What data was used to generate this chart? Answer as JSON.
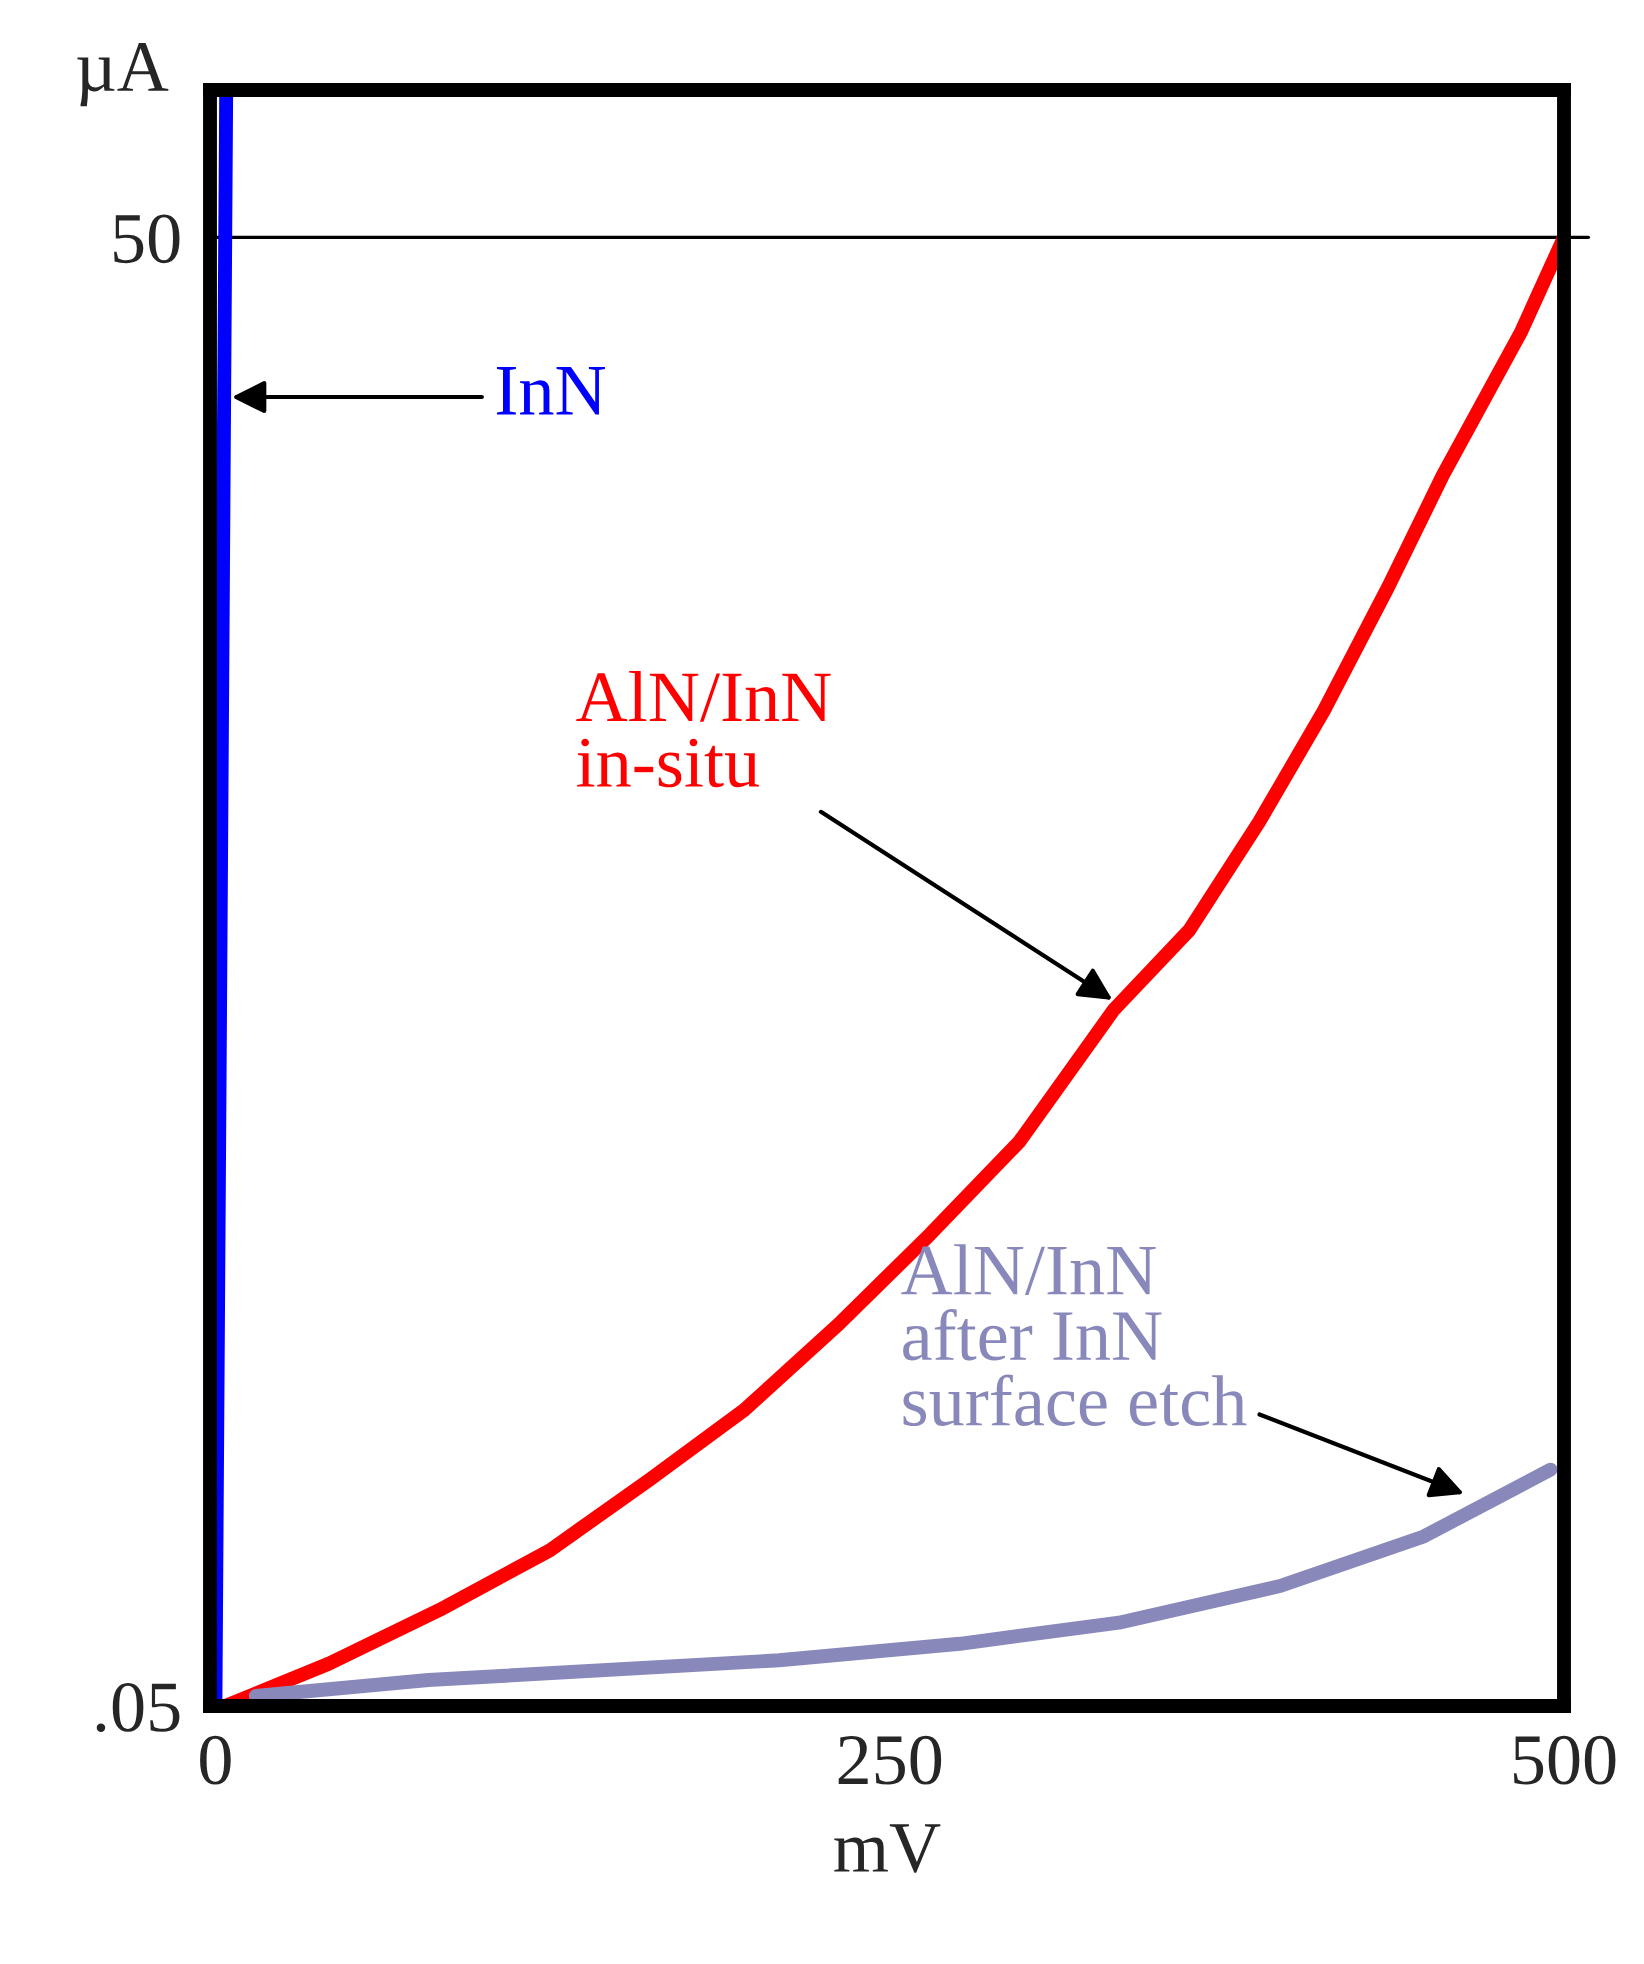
{
  "chart_data": {
    "type": "line",
    "xlabel": "mV",
    "ylabel": "µA",
    "log": "y",
    "xlim": [
      -2,
      500
    ],
    "xticks": [
      0,
      250,
      500
    ],
    "ylim": [
      0.05,
      100
    ],
    "yticks": [
      {
        "value": 0.05,
        "label": ".05"
      },
      50
    ],
    "grid": false,
    "legend": false,
    "marker": "none",
    "line_style": "solid",
    "ref_lines": [
      {
        "axis": "y",
        "value": 50,
        "color": "#000000"
      }
    ],
    "series": [
      {
        "name": "InN",
        "color": "#0000ff",
        "x": [
          0,
          4
        ],
        "values": [
          0.05,
          99
        ]
      },
      {
        "name": "AlN/InN\nin-situ",
        "color": "#ff0000",
        "x": [
          3.7,
          42,
          83,
          124,
          161,
          196,
          231,
          265,
          298,
          333,
          361,
          387,
          411,
          435,
          455,
          484,
          500
        ],
        "values": [
          0.05,
          0.061,
          0.0785,
          0.104,
          0.145,
          0.201,
          0.301,
          0.46,
          0.71,
          1.32,
          1.92,
          3.2,
          5.4,
          9.7,
          16.3,
          32,
          50
        ]
      },
      {
        "name": "AlN/InN\nafter InN\nsurface etch",
        "color": "#8888bb",
        "x": [
          15,
          79,
          209,
          276,
          335,
          395,
          448,
          495
        ],
        "values": [
          0.0524,
          0.0565,
          0.062,
          0.067,
          0.074,
          0.088,
          0.111,
          0.152
        ]
      }
    ]
  }
}
